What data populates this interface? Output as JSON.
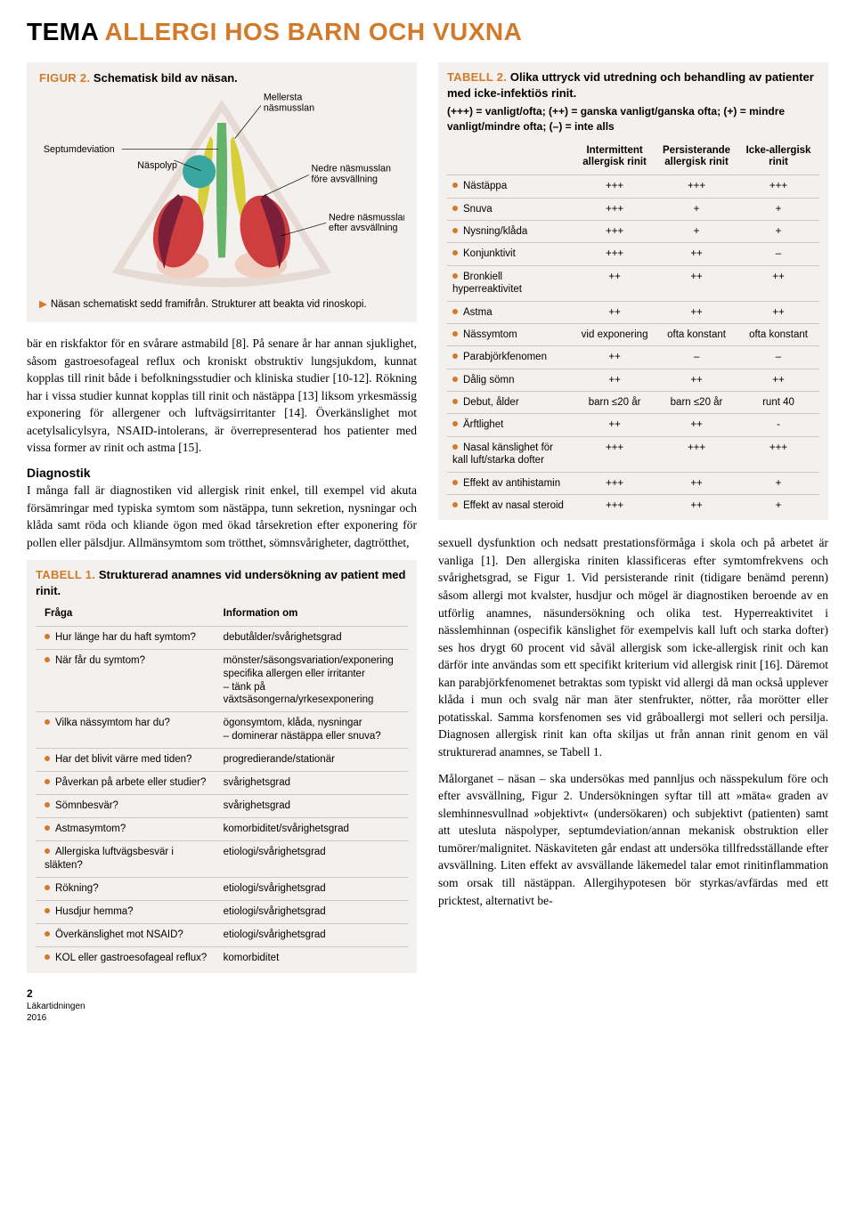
{
  "headline": {
    "prefix": "TEMA",
    "suffix": "ALLERGI HOS BARN OCH VUXNA"
  },
  "figure2": {
    "label": "FIGUR 2.",
    "title": "Schematisk bild av näsan.",
    "labels": {
      "mellersta": "Mellersta\nnäsmusslan",
      "naspolyp": "Näspolyp",
      "septum": "Septumdeviation",
      "nedre_fore": "Nedre näsmusslan\nföre avsvällning",
      "nedre_efter": "Nedre näsmusslan\nefter avsvällning"
    },
    "caption": "Näsan schematiskt sedd framifrån. Strukturer att beakta vid rinoskopi.",
    "colors": {
      "triangle_outline": "#e6dad4",
      "nostril": "#f1cfc0",
      "septum": "#65b36a",
      "polyp": "#3aa6a0",
      "mellersta": "#d7cf3a",
      "nedre_fore": "#cf3e3e",
      "nedre_efter": "#7a1f3a"
    }
  },
  "bodyLeft": {
    "p1": "bär en riskfaktor för en svårare astmabild [8]. På senare år har annan sjuklighet, såsom gastroesofageal reflux och kroniskt obstruktiv lungsjukdom, kunnat kopplas till rinit både i befolkningsstudier och kliniska studier [10-12]. Rökning har i vissa studier kunnat kopplas till rinit och nästäppa [13] liksom yrkesmässig exponering för allergener och luftvägsirritanter [14]. Överkänslighet mot acetylsalicylsyra, NSAID-intolerans, är överrepresenterad hos patienter med vissa former av rinit och astma [15].",
    "h1": "Diagnostik",
    "p2": "I många fall är diagnostiken vid allergisk rinit enkel, till exempel vid akuta försämringar med typiska symtom som nästäppa, tunn sekretion, nysningar och klåda samt röda och kliande ögon med ökad tårsekretion efter exponering för pollen eller pälsdjur. Allmänsymtom som trötthet, sömnsvårigheter, dagtrötthet,"
  },
  "tabell1": {
    "label": "TABELL 1.",
    "title": "Strukturerad anamnes vid undersökning av patient med rinit.",
    "headers": [
      "Fråga",
      "Information om"
    ],
    "rows": [
      [
        "Hur länge har du haft symtom?",
        "debutålder/svårighetsgrad"
      ],
      [
        "När får du symtom?",
        "mönster/säsongsvariation/exponering\nspecifika allergen eller irritanter\n– tänk på växtsäsongerna/yrkesexponering"
      ],
      [
        "Vilka nässymtom har du?",
        "ögonsymtom, klåda, nysningar\n– dominerar nästäppa eller snuva?"
      ],
      [
        "Har det blivit värre med tiden?",
        "progredierande/stationär"
      ],
      [
        "Påverkan på arbete eller studier?",
        "svårighetsgrad"
      ],
      [
        "Sömnbesvär?",
        "svårighetsgrad"
      ],
      [
        "Astmasymtom?",
        "komorbiditet/svårighetsgrad"
      ],
      [
        "Allergiska luftvägsbesvär i släkten?",
        "etiologi/svårighetsgrad"
      ],
      [
        "Rökning?",
        "etiologi/svårighetsgrad"
      ],
      [
        "Husdjur hemma?",
        "etiologi/svårighetsgrad"
      ],
      [
        "Överkänslighet mot NSAID?",
        "etiologi/svårighetsgrad"
      ],
      [
        "KOL eller gastroesofageal reflux?",
        "komorbiditet"
      ]
    ]
  },
  "tabell2": {
    "label": "TABELL 2.",
    "title": "Olika uttryck vid utredning och behandling av patienter med icke-infektiös rinit.",
    "subtitle": "(+++) = vanligt/ofta; (++) = ganska vanligt/ganska ofta; (+) = mindre vanligt/mindre ofta; (–) = inte alls",
    "headers": [
      "",
      "Intermittent allergisk rinit",
      "Persisterande allergisk rinit",
      "Icke-allergisk rinit"
    ],
    "rows": [
      [
        "Nästäppa",
        "+++",
        "+++",
        "+++"
      ],
      [
        "Snuva",
        "+++",
        "+",
        "+"
      ],
      [
        "Nysning/klåda",
        "+++",
        "+",
        "+"
      ],
      [
        "Konjunktivit",
        "+++",
        "++",
        "–"
      ],
      [
        "Bronkiell hyperreaktivitet",
        "++",
        "++",
        "++"
      ],
      [
        "Astma",
        "++",
        "++",
        "++"
      ],
      [
        "Nässymtom",
        "vid exponering",
        "ofta konstant",
        "ofta konstant"
      ],
      [
        "Parabjörkfenomen",
        "++",
        "–",
        "–"
      ],
      [
        "Dålig sömn",
        "++",
        "++",
        "++"
      ],
      [
        "Debut, ålder",
        "barn ≤20 år",
        "barn ≤20 år",
        "runt 40"
      ],
      [
        "Ärftlighet",
        "++",
        "++",
        "-"
      ],
      [
        "Nasal känslighet för kall luft/starka dofter",
        "+++",
        "+++",
        "+++"
      ],
      [
        "Effekt av antihistamin",
        "+++",
        "++",
        "+"
      ],
      [
        "Effekt av nasal steroid",
        "+++",
        "++",
        "+"
      ]
    ]
  },
  "bodyRight": {
    "p1": "sexuell dysfunktion och nedsatt prestationsförmåga i skola och på arbetet är vanliga [1]. Den allergiska riniten klassificeras efter symtomfrekvens och svårighetsgrad, se Figur 1. Vid persisterande rinit (tidigare benämd perenn) såsom allergi mot kvalster, husdjur och mögel är diagnostiken beroende av en utförlig anamnes, näsundersökning och olika test. Hyperreaktivitet i nässlemhinnan (ospecifik känslighet för exempelvis kall luft och starka dofter) ses hos drygt 60 procent vid såväl allergisk som icke-allergisk rinit och kan därför inte användas som ett specifikt kriterium vid allergisk rinit [16]. Däremot kan parabjörkfenomenet betraktas som typiskt vid allergi då man också upplever klåda i mun och svalg när man äter stenfrukter, nötter, råa morötter eller potatisskal. Samma korsfenomen ses vid gråboallergi mot selleri och persilja. Diagnosen allergisk rinit kan ofta skiljas ut från annan rinit genom en väl strukturerad anamnes, se Tabell 1.",
    "p2": "Målorganet – näsan – ska undersökas med pannljus och nässpekulum före och efter avsvällning, Figur 2. Undersökningen syftar till att »mäta« graden av slemhinnesvullnad »objektivt« (undersökaren) och subjektivt (patienten) samt att utesluta näspolyper, septumdeviation/annan mekanisk obstruktion eller tumörer/malignitet. Näskaviteten går endast att undersöka tillfredsställande efter avsvällning. Liten effekt av avsvällande läkemedel talar emot rinitinflammation som orsak till nästäppan. Allergihypotesen bör styrkas/avfärdas med ett pricktest, alternativt be-"
  },
  "footer": {
    "page": "2",
    "pub": "Läkartidningen",
    "year": "2016"
  }
}
